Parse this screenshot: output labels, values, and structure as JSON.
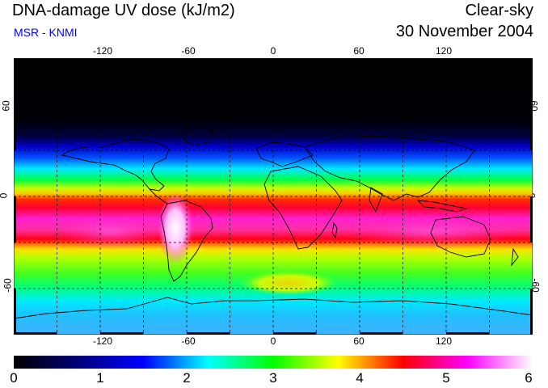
{
  "header": {
    "title": "DNA-damage UV dose (kJ/m2)",
    "source": "MSR - KNMI",
    "condition": "Clear-sky",
    "date": "30 November 2004"
  },
  "map": {
    "longitude_ticks": [
      "-120",
      "-60",
      "0",
      "60",
      "120"
    ],
    "latitude_ticks": [
      "60",
      "0",
      "-60"
    ]
  },
  "colorbar": {
    "labels": [
      "0",
      "1",
      "2",
      "3",
      "4",
      "5",
      "6"
    ],
    "min": 0,
    "max": 6,
    "colors": [
      "#000000",
      "#00007a",
      "#0000ff",
      "#00ffff",
      "#00ff00",
      "#ffff00",
      "#ff0000",
      "#ff00ff",
      "#ffffff"
    ]
  }
}
